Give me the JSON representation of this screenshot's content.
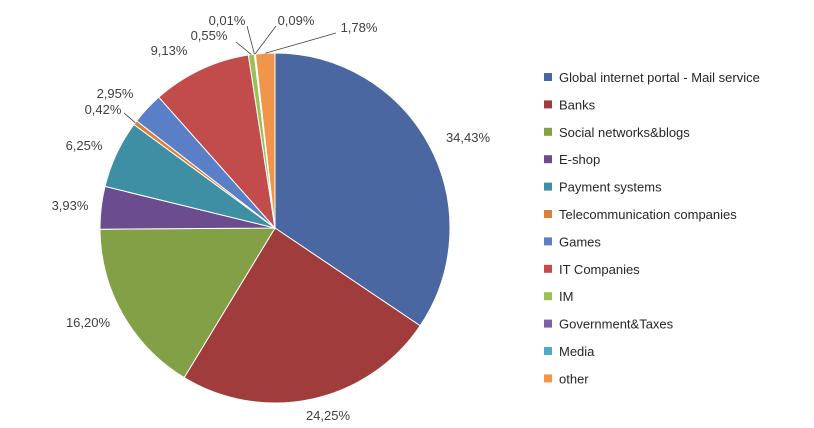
{
  "chart_data": {
    "type": "pie",
    "title": "",
    "legend_position": "right",
    "slices": [
      {
        "name": "Global internet portal - Mail service",
        "value": 34.43,
        "label": "34,43%",
        "color": "#4a67a1"
      },
      {
        "name": "Banks",
        "value": 24.25,
        "label": "24,25%",
        "color": "#a03c3c"
      },
      {
        "name": "Social networks&blogs",
        "value": 16.2,
        "label": "16,20%",
        "color": "#82a046"
      },
      {
        "name": "E-shop",
        "value": 3.93,
        "label": "3,93%",
        "color": "#6b4c8f"
      },
      {
        "name": "Payment systems",
        "value": 6.25,
        "label": "6,25%",
        "color": "#3e8fa4"
      },
      {
        "name": "Telecommunication companies",
        "value": 0.42,
        "label": "0,42%",
        "color": "#d9803a"
      },
      {
        "name": "Games",
        "value": 2.95,
        "label": "2,95%",
        "color": "#5b7fc7"
      },
      {
        "name": "IT Companies",
        "value": 9.13,
        "label": "9,13%",
        "color": "#c24b4b"
      },
      {
        "name": "IM",
        "value": 0.55,
        "label": "0,55%",
        "color": "#9cbf5a"
      },
      {
        "name": "Government&Taxes",
        "value": 0.01,
        "label": "0,01%",
        "color": "#7d5fa6"
      },
      {
        "name": "Media",
        "value": 0.09,
        "label": "0,09%",
        "color": "#4bacc6"
      },
      {
        "name": "other",
        "value": 1.78,
        "label": "1,78%",
        "color": "#f0954a"
      }
    ]
  }
}
